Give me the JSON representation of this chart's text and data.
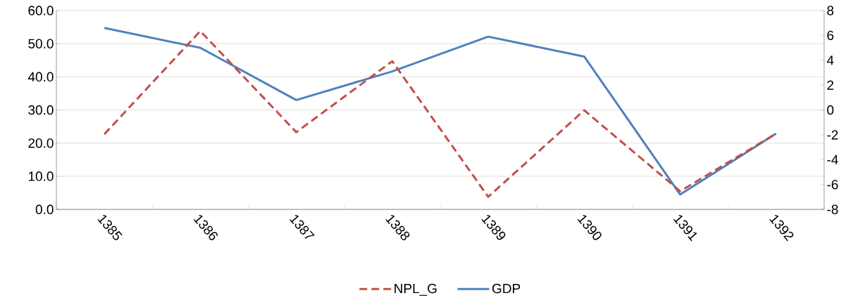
{
  "chart_data": {
    "type": "line",
    "categories": [
      "1385",
      "1386",
      "1387",
      "1388",
      "1389",
      "1390",
      "1391",
      "1392"
    ],
    "series": [
      {
        "name": "NPL_G",
        "color": "#c0504d",
        "line_style": "dashed",
        "values": [
          22.7,
          53.8,
          23.3,
          44.7,
          3.8,
          29.9,
          5.5,
          22.9
        ]
      },
      {
        "name": "GDP",
        "color": "#4f81bd",
        "line_style": "solid",
        "axis": "y2",
        "values": [
          6.6,
          5.0,
          0.8,
          3.1,
          5.9,
          4.3,
          -6.8,
          -1.9
        ]
      }
    ],
    "ylim": [
      0,
      60
    ],
    "yticks": [
      {
        "value": 0,
        "label": "0.0"
      },
      {
        "value": 10,
        "label": "10.0"
      },
      {
        "value": 20,
        "label": "20.0"
      },
      {
        "value": 30,
        "label": "30.0"
      },
      {
        "value": 40,
        "label": "40.0"
      },
      {
        "value": 50,
        "label": "50.0"
      },
      {
        "value": 60,
        "label": "60.0"
      }
    ],
    "y2lim": [
      -8,
      8
    ],
    "y2ticks": [
      -8,
      -6,
      -4,
      -2,
      0,
      2,
      4,
      6,
      8
    ],
    "grid": "y",
    "legend": "bottom",
    "marker": "none"
  }
}
